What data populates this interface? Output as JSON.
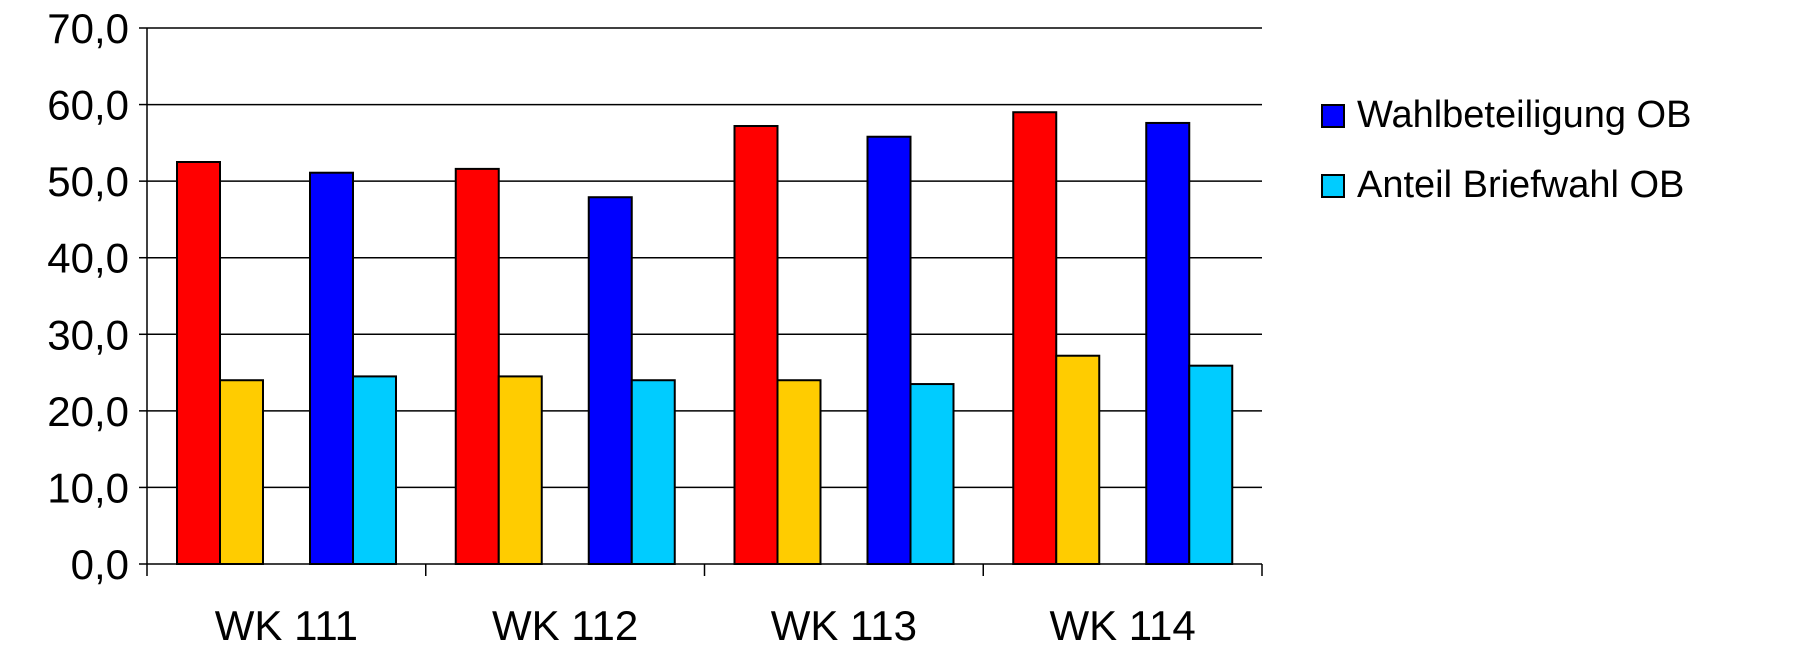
{
  "chart_data": {
    "type": "bar",
    "categories": [
      "WK 111",
      "WK 112",
      "WK 113",
      "WK 114"
    ],
    "ylim": [
      0,
      70
    ],
    "yticks": [
      "0,0",
      "10,0",
      "20,0",
      "30,0",
      "40,0",
      "50,0",
      "60,0",
      "70,0"
    ],
    "grid": true,
    "legend_position": "right",
    "groups": [
      {
        "category": "WK 111",
        "bars": [
          {
            "value": 52.5,
            "color": "#ff0000"
          },
          {
            "value": 24.0,
            "color": "#ffcc00"
          },
          {
            "value": 51.1,
            "color": "#0000ff"
          },
          {
            "value": 24.5,
            "color": "#00ccff"
          }
        ]
      },
      {
        "category": "WK 112",
        "bars": [
          {
            "value": 51.6,
            "color": "#ff0000"
          },
          {
            "value": 24.5,
            "color": "#ffcc00"
          },
          {
            "value": 47.9,
            "color": "#0000ff"
          },
          {
            "value": 24.0,
            "color": "#00ccff"
          }
        ]
      },
      {
        "category": "WK 113",
        "bars": [
          {
            "value": 57.2,
            "color": "#ff0000"
          },
          {
            "value": 24.0,
            "color": "#ffcc00"
          },
          {
            "value": 55.8,
            "color": "#0000ff"
          },
          {
            "value": 23.5,
            "color": "#00ccff"
          }
        ]
      },
      {
        "category": "WK 114",
        "bars": [
          {
            "value": 59.0,
            "color": "#ff0000"
          },
          {
            "value": 27.2,
            "color": "#ffcc00"
          },
          {
            "value": 57.6,
            "color": "#0000ff"
          },
          {
            "value": 25.9,
            "color": "#00ccff"
          }
        ]
      }
    ],
    "legend": [
      {
        "label": "Wahlbeteiligung OB",
        "color": "#0000ff"
      },
      {
        "label": "Anteil Briefwahl OB",
        "color": "#00ccff"
      }
    ]
  }
}
